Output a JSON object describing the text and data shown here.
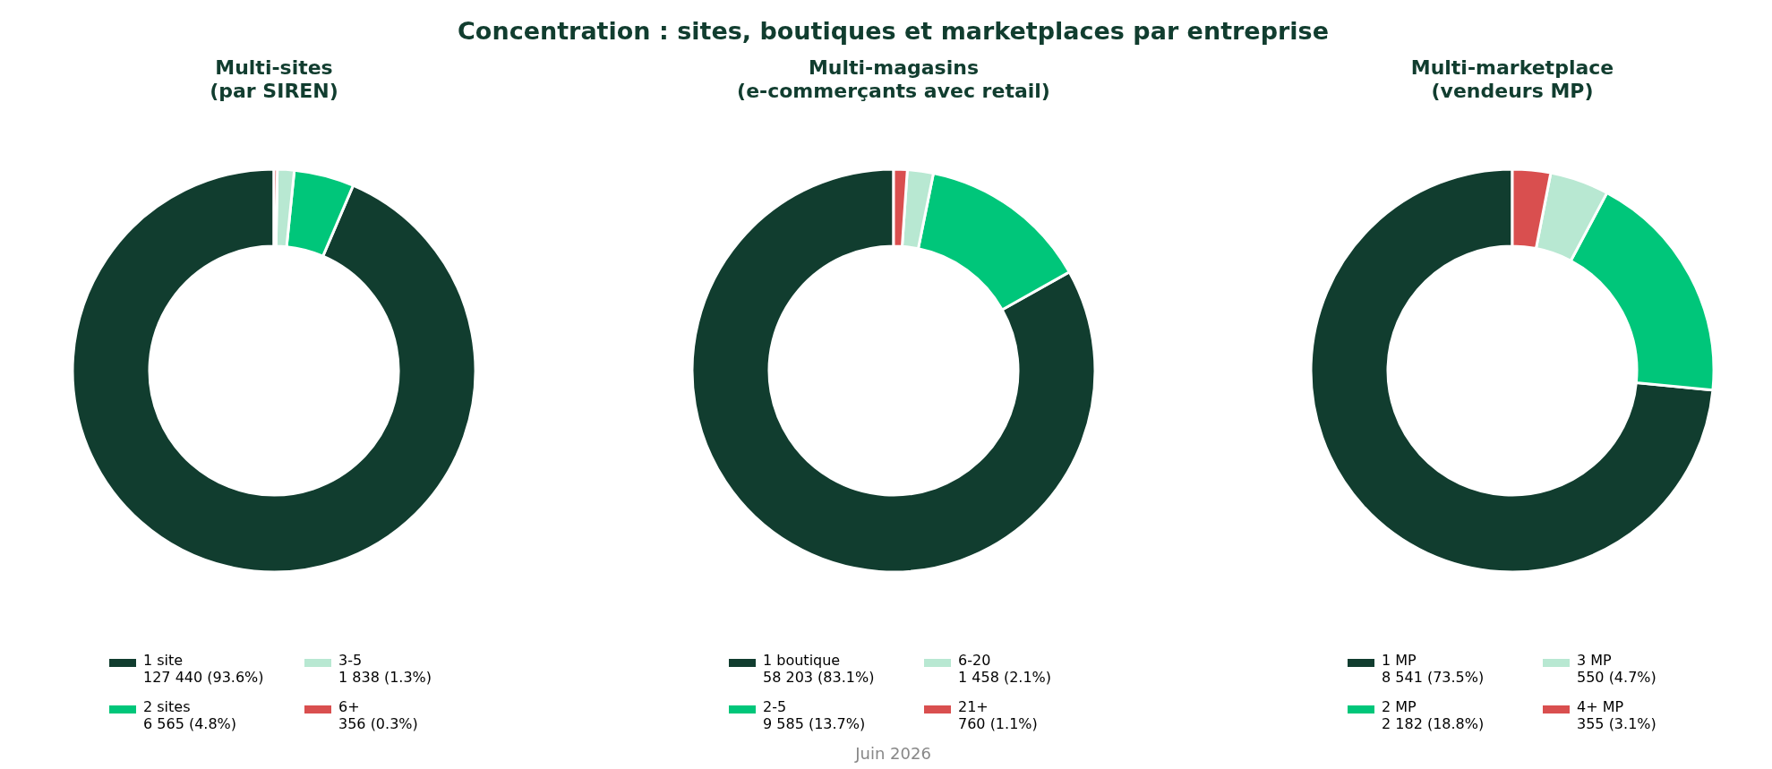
{
  "chart_data": [
    {
      "type": "donut",
      "title": "Multi-sites\n(par SIREN)",
      "categories": [
        "1 site",
        "2 sites",
        "3-5",
        "6+"
      ],
      "values": [
        127440,
        6565,
        1838,
        356
      ],
      "colors": [
        "#113d2f",
        "#00c67a",
        "#b8e8d2",
        "#d94f4f"
      ],
      "value_labels": [
        "127 440 (93.6%)",
        "6 565 (4.8%)",
        "1 838 (1.3%)",
        "356 (0.3%)"
      ],
      "legend": "bottom",
      "annotations": [
        "Concentration : sites, boutiques et marketplaces par entreprise"
      ]
    },
    {
      "type": "donut",
      "title": "Multi-magasins\n(e-commerçants avec retail)",
      "categories": [
        "1 boutique",
        "2-5",
        "6-20",
        "21+"
      ],
      "values": [
        58203,
        9585,
        1458,
        760
      ],
      "colors": [
        "#113d2f",
        "#00c67a",
        "#b8e8d2",
        "#d94f4f"
      ],
      "value_labels": [
        "58 203 (83.1%)",
        "9 585 (13.7%)",
        "1 458 (2.1%)",
        "760 (1.1%)"
      ],
      "legend": "bottom",
      "annotations": [
        "Juin 2026"
      ]
    },
    {
      "type": "donut",
      "title": "Multi-marketplace\n(vendeurs MP)",
      "categories": [
        "1 MP",
        "2 MP",
        "3 MP",
        "4+ MP"
      ],
      "values": [
        8541,
        2182,
        550,
        355
      ],
      "colors": [
        "#113d2f",
        "#00c67a",
        "#b8e8d2",
        "#d94f4f"
      ],
      "value_labels": [
        "8 541 (73.5%)",
        "2 182 (18.8%)",
        "550 (4.7%)",
        "355 (3.1%)"
      ],
      "legend": "bottom"
    }
  ]
}
